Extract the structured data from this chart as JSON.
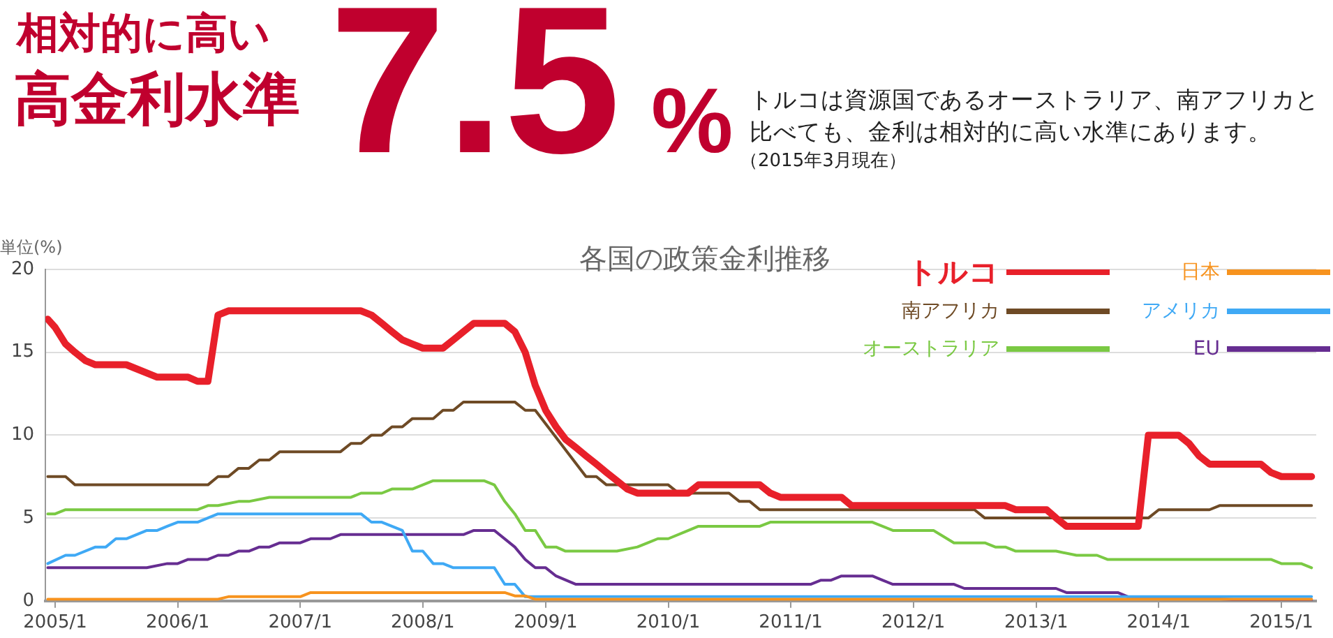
{
  "chart_data": {
    "type": "line",
    "title": "各国の政策金利推移",
    "ylabel": "単位(%)",
    "annotations": [
      "相対的に高い",
      "高金利水準",
      "7.5%",
      "トルコは資源国であるオーストラリア、南アフリカと比べても、金利は相対的に高い水準にあります。",
      "（2015年3月現在）"
    ],
    "xlim": [
      "2004-12-03",
      "2015-04-15"
    ],
    "xticks": [
      {
        "value": "2005-01",
        "label": "2005/1"
      },
      {
        "value": "2006-01",
        "label": "2006/1"
      },
      {
        "value": "2007-01",
        "label": "2007/1"
      },
      {
        "value": "2008-01",
        "label": "2008/1"
      },
      {
        "value": "2009-01",
        "label": "2009/1"
      },
      {
        "value": "2010-01",
        "label": "2010/1"
      },
      {
        "value": "2011-01",
        "label": "2011/1"
      },
      {
        "value": "2012-01",
        "label": "2012/1"
      },
      {
        "value": "2013-01",
        "label": "2013/1"
      },
      {
        "value": "2014-01",
        "label": "2014/1"
      },
      {
        "value": "2015-01",
        "label": "2015/1"
      }
    ],
    "ylim": [
      0,
      20
    ],
    "yticks": [
      0,
      5,
      10,
      15,
      20
    ],
    "grid": "y",
    "legend": "top right",
    "marker": "none",
    "line_style": "solid",
    "series": [
      {
        "name": "トルコ",
        "color": "#e8202a",
        "x": [
          "2004-12-10",
          "2005-01",
          "2005-02",
          "2005-03",
          "2005-04",
          "2005-05",
          "2005-08",
          "2005-11",
          "2006-02",
          "2006-03",
          "2006-04",
          "2006-05",
          "2006-06",
          "2007-07",
          "2007-08",
          "2007-09",
          "2007-10",
          "2007-11",
          "2007-12",
          "2008-01",
          "2008-03",
          "2008-04",
          "2008-05",
          "2008-06",
          "2008-09",
          "2008-10",
          "2008-11",
          "2008-12",
          "2009-01",
          "2009-02",
          "2009-03",
          "2009-04",
          "2009-05",
          "2009-06",
          "2009-07",
          "2009-08",
          "2009-09",
          "2009-10",
          "2010-03",
          "2010-04",
          "2010-10",
          "2010-11",
          "2010-12",
          "2011-06",
          "2011-07",
          "2012-10",
          "2012-11",
          "2013-02",
          "2013-03",
          "2013-04",
          "2013-11",
          "2013-12",
          "2014-03",
          "2014-04",
          "2014-05",
          "2014-06",
          "2014-11",
          "2014-12",
          "2015-01",
          "2015-04"
        ],
        "values": [
          17,
          16.5,
          15.5,
          15,
          14.5,
          14.25,
          14.25,
          13.5,
          13.5,
          13.25,
          13.25,
          17.25,
          17.5,
          17.5,
          17.25,
          16.75,
          16.25,
          15.75,
          15.5,
          15.25,
          15.25,
          15.75,
          16.25,
          16.75,
          16.75,
          16.25,
          15,
          13,
          11.5,
          10.5,
          9.75,
          9.25,
          8.75,
          8.25,
          7.75,
          7.25,
          6.75,
          6.5,
          6.5,
          7,
          7,
          6.5,
          6.25,
          6.25,
          5.75,
          5.75,
          5.5,
          5.5,
          5,
          4.5,
          4.5,
          10,
          10,
          9.5,
          8.75,
          8.25,
          8.25,
          7.75,
          7.5,
          7.5
        ]
      },
      {
        "name": "南アフリカ",
        "color": "#6e4a25",
        "x": [
          "2004-12-10",
          "2005-02",
          "2005-03",
          "2006-04",
          "2006-05",
          "2006-06",
          "2006-07",
          "2006-08",
          "2006-09",
          "2006-10",
          "2006-11",
          "2007-05",
          "2007-06",
          "2007-07",
          "2007-08",
          "2007-09",
          "2007-10",
          "2007-11",
          "2007-12",
          "2008-02",
          "2008-03",
          "2008-04",
          "2008-05",
          "2008-10",
          "2008-11",
          "2008-12",
          "2009-05",
          "2009-06",
          "2009-07",
          "2010-01",
          "2010-02",
          "2010-07",
          "2010-08",
          "2010-09",
          "2010-10",
          "2012-07",
          "2012-08",
          "2013-12",
          "2014-01",
          "2014-06",
          "2014-07",
          "2015-04"
        ],
        "values": [
          7.5,
          7.5,
          7,
          7,
          7.5,
          7.5,
          8,
          8,
          8.5,
          8.5,
          9,
          9,
          9.5,
          9.5,
          10,
          10,
          10.5,
          10.5,
          11,
          11,
          11.5,
          11.5,
          12,
          12,
          11.5,
          11.5,
          7.5,
          7.5,
          7,
          7,
          6.5,
          6.5,
          6,
          6,
          5.5,
          5.5,
          5,
          5,
          5.5,
          5.5,
          5.75,
          5.75
        ]
      },
      {
        "name": "オーストラリア",
        "color": "#7ac943",
        "x": [
          "2004-12-10",
          "2005-01",
          "2005-02",
          "2006-03",
          "2006-04",
          "2006-05",
          "2006-07",
          "2006-08",
          "2006-10",
          "2007-06",
          "2007-07",
          "2007-09",
          "2007-10",
          "2007-12",
          "2008-01",
          "2008-02",
          "2008-07",
          "2008-08",
          "2008-09",
          "2008-10",
          "2008-11",
          "2008-12",
          "2009-01",
          "2009-02",
          "2009-03",
          "2009-08",
          "2009-10",
          "2009-11",
          "2009-12",
          "2010-01",
          "2010-04",
          "2010-10",
          "2010-11",
          "2011-09",
          "2011-11",
          "2012-03",
          "2012-05",
          "2012-08",
          "2012-09",
          "2012-10",
          "2012-11",
          "2013-03",
          "2013-05",
          "2013-07",
          "2013-08",
          "2014-12",
          "2015-01",
          "2015-03",
          "2015-04"
        ],
        "values": [
          5.25,
          5.25,
          5.5,
          5.5,
          5.75,
          5.75,
          6,
          6,
          6.25,
          6.25,
          6.5,
          6.5,
          6.75,
          6.75,
          7,
          7.25,
          7.25,
          7,
          6,
          5.25,
          4.25,
          4.25,
          3.25,
          3.25,
          3,
          3,
          3.25,
          3.5,
          3.75,
          3.75,
          4.5,
          4.5,
          4.75,
          4.75,
          4.25,
          4.25,
          3.5,
          3.5,
          3.25,
          3.25,
          3,
          3,
          2.75,
          2.75,
          2.5,
          2.5,
          2.25,
          2.25,
          2
        ]
      },
      {
        "name": "日本",
        "color": "#f7931e",
        "x": [
          "2004-12-10",
          "2006-05",
          "2006-06",
          "2007-01",
          "2007-02",
          "2008-09",
          "2008-10",
          "2008-11",
          "2008-12",
          "2015-04"
        ],
        "values": [
          0.1,
          0.1,
          0.25,
          0.25,
          0.5,
          0.5,
          0.3,
          0.3,
          0.1,
          0.1
        ]
      },
      {
        "name": "アメリカ",
        "color": "#3fa9f5",
        "x": [
          "2004-12-10",
          "2005-02",
          "2005-03",
          "2005-05",
          "2005-06",
          "2005-07",
          "2005-08",
          "2005-10",
          "2005-11",
          "2005-12",
          "2006-01",
          "2006-03",
          "2006-05",
          "2007-07",
          "2007-08",
          "2007-09",
          "2007-11",
          "2007-12",
          "2008-01",
          "2008-02",
          "2008-03",
          "2008-04",
          "2008-08",
          "2008-09",
          "2008-10",
          "2008-11",
          "2015-04"
        ],
        "values": [
          2.25,
          2.75,
          2.75,
          3.25,
          3.25,
          3.75,
          3.75,
          4.25,
          4.25,
          4.5,
          4.75,
          4.75,
          5.25,
          5.25,
          4.75,
          4.75,
          4.25,
          3,
          3,
          2.25,
          2.25,
          2,
          2,
          1,
          1,
          0.25,
          0.25
        ]
      },
      {
        "name": "EU",
        "color": "#662d91",
        "x": [
          "2004-12-10",
          "2005-10",
          "2005-12",
          "2006-01",
          "2006-02",
          "2006-04",
          "2006-05",
          "2006-06",
          "2006-07",
          "2006-08",
          "2006-09",
          "2006-10",
          "2006-11",
          "2007-01",
          "2007-02",
          "2007-04",
          "2007-05",
          "2008-05",
          "2008-06",
          "2008-08",
          "2008-10",
          "2008-11",
          "2008-12",
          "2009-01",
          "2009-02",
          "2009-04",
          "2011-03",
          "2011-04",
          "2011-05",
          "2011-06",
          "2011-09",
          "2011-10",
          "2011-11",
          "2012-05",
          "2012-06",
          "2013-03",
          "2013-04",
          "2013-09",
          "2013-10",
          "2014-06",
          "2014-09",
          "2015-04"
        ],
        "values": [
          2,
          2,
          2.25,
          2.25,
          2.5,
          2.5,
          2.75,
          2.75,
          3,
          3,
          3.25,
          3.25,
          3.5,
          3.5,
          3.75,
          3.75,
          4,
          4,
          4.25,
          4.25,
          3.25,
          2.5,
          2,
          2,
          1.5,
          1,
          1,
          1.25,
          1.25,
          1.5,
          1.5,
          1.25,
          1,
          1,
          0.75,
          0.75,
          0.5,
          0.5,
          0.25,
          0.15,
          0.05,
          0.05
        ]
      }
    ]
  }
}
